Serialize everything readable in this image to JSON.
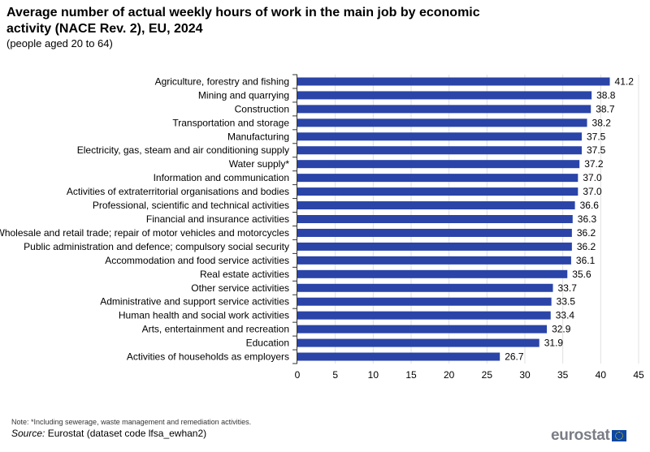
{
  "title": "Average number of actual weekly hours of work in the main job by economic activity (NACE Rev. 2), EU, 2024",
  "subtitle": "(people aged 20 to 64)",
  "note": "Note:   *Including sewerage, waste management and remediation activities.",
  "source_label": "Source:",
  "source_text": " Eurostat (dataset code lfsa_ewhan2)",
  "logo": "eurostat",
  "chart_data": {
    "type": "bar",
    "orientation": "horizontal",
    "categories": [
      "Agriculture, forestry and fishing",
      "Mining and quarrying",
      "Construction",
      "Transportation and storage",
      "Manufacturing",
      "Electricity, gas, steam and air conditioning supply",
      "Water supply*",
      "Information and communication",
      "Activities of extraterritorial organisations and bodies",
      "Professional, scientific and technical activities",
      "Financial and insurance activities",
      "Wholesale and retail trade; repair of motor vehicles and motorcycles",
      "Public administration and defence; compulsory social security",
      "Accommodation and food service activities",
      "Real estate activities",
      "Other service activities",
      "Administrative and support service activities",
      "Human health and social work activities",
      "Arts, entertainment and recreation",
      "Education",
      "Activities of households as employers"
    ],
    "values": [
      41.2,
      38.8,
      38.7,
      38.2,
      37.5,
      37.5,
      37.2,
      37.0,
      37.0,
      36.6,
      36.3,
      36.2,
      36.2,
      36.1,
      35.6,
      33.7,
      33.5,
      33.4,
      32.9,
      31.9,
      26.7
    ],
    "xlim": [
      0,
      45
    ],
    "xticks": [
      0,
      5,
      10,
      15,
      20,
      25,
      30,
      35,
      40,
      45
    ],
    "grid": true,
    "bar_color": "#2a44a8",
    "data_labels": true
  }
}
